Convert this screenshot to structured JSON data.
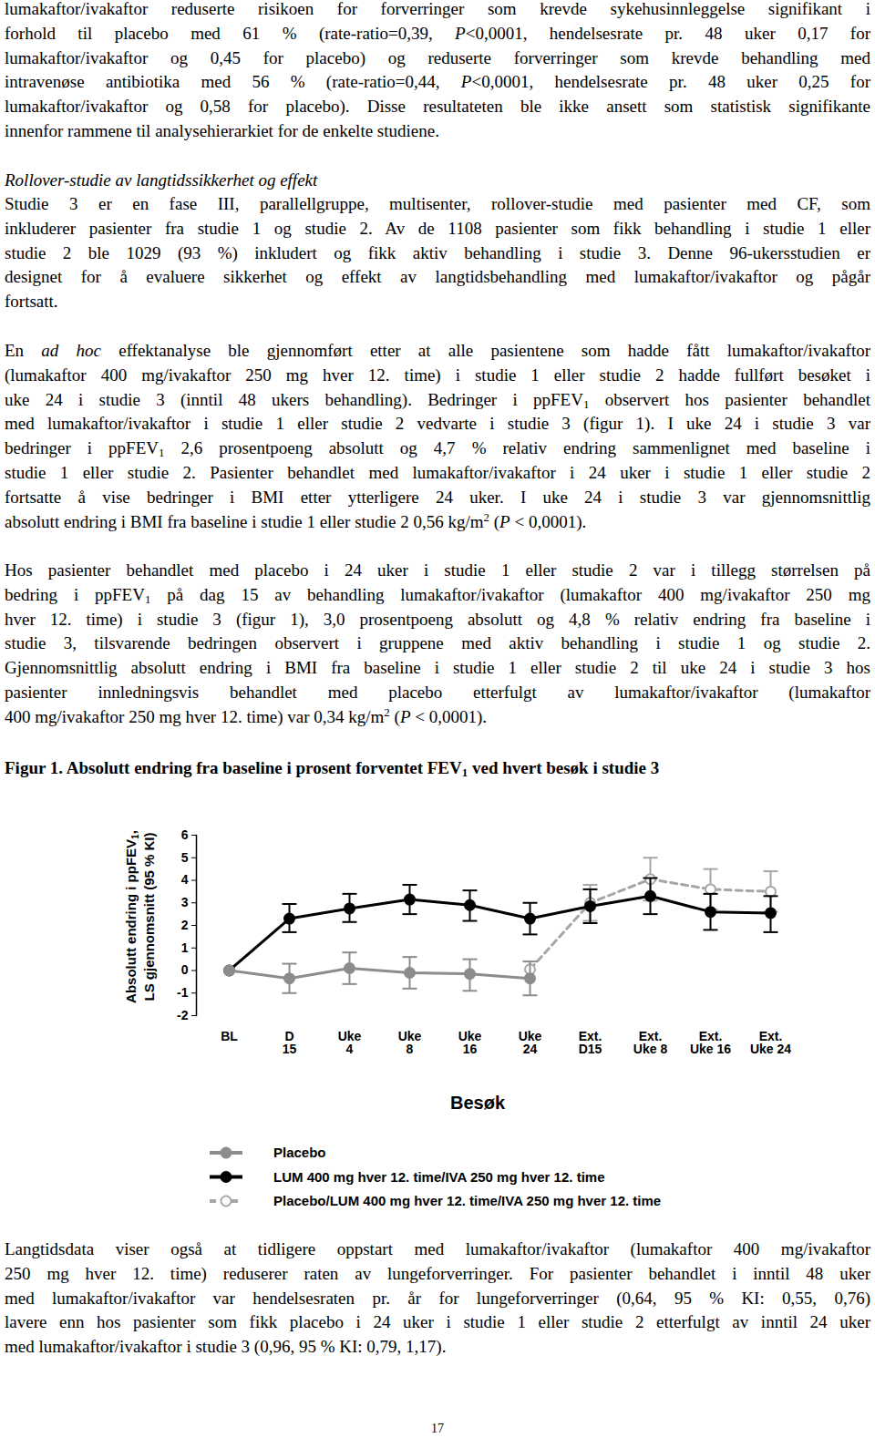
{
  "document": {
    "paragraph_1": [
      [
        "lumakaftor/ivakaftor reduserte risikoen for forverringer som krevde sykehusinnleggelse signifikant i"
      ],
      [
        "forhold til placebo med 61 % (rate-ratio=0,39, ",
        {
          "i": "P"
        },
        "<0,0001, hendelsesrate pr. 48 uker 0,17 for"
      ],
      [
        "lumakaftor/ivakaftor og 0,45 for placebo) og reduserte forverringer som krevde behandling med"
      ],
      [
        "intravenøse antibiotika med 56 % (rate-ratio=0,44, ",
        {
          "i": "P"
        },
        "<0,0001, hendelsesrate pr. 48 uker 0,25 for"
      ],
      [
        "lumakaftor/ivakaftor og 0,58 for placebo). Disse resultateten ble ikke ansett som statistisk signifikante"
      ],
      [
        "innenfor rammene til analysehierarkiet for de enkelte studiene."
      ]
    ],
    "heading": "Rollover-studie av langtidssikkerhet og effekt",
    "paragraph_2": [
      [
        "Studie 3 er en fase III, parallellgruppe, multisenter, rollover-studie med pasienter med CF, som"
      ],
      [
        "inkluderer pasienter fra studie 1 og studie 2. Av de 1108 pasienter som fikk behandling i studie 1 eller"
      ],
      [
        "studie 2 ble 1029 (93 %) inkludert og fikk aktiv behandling i studie 3. Denne 96-ukersstudien er"
      ],
      [
        "designet for å evaluere sikkerhet og effekt av langtidsbehandling med lumakaftor/ivakaftor og pågår"
      ],
      [
        "fortsatt."
      ]
    ],
    "paragraph_3": [
      [
        "En ",
        {
          "i": "ad hoc"
        },
        " effektanalyse ble gjennomført etter at alle pasientene som hadde fått lumakaftor/ivakaftor"
      ],
      [
        "(lumakaftor 400 mg/ivakaftor 250 mg hver 12. time) i studie 1 eller studie 2 hadde fullført besøket i"
      ],
      [
        "uke 24 i studie 3 (inntil 48 ukers behandling). Bedringer i ppFEV",
        {
          "sub": "1"
        },
        " observert hos pasienter behandlet"
      ],
      [
        "med lumakaftor/ivakaftor i studie 1 eller studie 2 vedvarte i studie 3 (figur 1). I uke 24 i studie 3 var"
      ],
      [
        "bedringer i ppFEV",
        {
          "sub": "1"
        },
        " 2,6 prosentpoeng absolutt og 4,7 % relativ endring sammenlignet med baseline i"
      ],
      [
        "studie 1 eller studie 2. Pasienter behandlet med lumakaftor/ivakaftor i 24 uker i studie 1 eller studie 2"
      ],
      [
        "fortsatte å vise bedringer i BMI etter ytterligere 24 uker. I uke 24 i studie 3 var gjennomsnittlig"
      ],
      [
        "absolutt endring i BMI fra baseline i studie 1 eller studie 2 0,56 kg/m",
        {
          "sup": "2"
        },
        " (",
        {
          "i": "P"
        },
        " < 0,0001)."
      ]
    ],
    "paragraph_4": [
      [
        "Hos pasienter behandlet med placebo i 24 uker i studie 1 eller studie 2 var i tillegg størrelsen på"
      ],
      [
        "bedring i ppFEV",
        {
          "sub": "1"
        },
        " på dag 15 av behandling lumakaftor/ivakaftor (lumakaftor 400 mg/ivakaftor 250 mg"
      ],
      [
        "hver 12. time) i studie 3 (figur 1), 3,0 prosentpoeng absolutt og 4,8 % relativ endring fra baseline i"
      ],
      [
        "studie 3, tilsvarende bedringen observert i gruppene med aktiv behandling i studie 1 og studie 2."
      ],
      [
        "Gjennomsnittlig absolutt endring i BMI fra baseline i studie 1 eller studie 2 til uke 24 i studie 3 hos"
      ],
      [
        "pasienter innledningsvis behandlet med placebo etterfulgt av lumakaftor/ivakaftor (lumakaftor"
      ],
      [
        "400 mg/ivakaftor 250 mg hver 12. time) var 0,34 kg/m",
        {
          "sup": "2"
        },
        " (",
        {
          "i": "P"
        },
        " < 0,0001)."
      ]
    ],
    "paragraph_5": [
      [
        "Langtidsdata viser også at tidligere oppstart med lumakaftor/ivakaftor (lumakaftor 400 mg/ivakaftor"
      ],
      [
        "250 mg hver 12. time) reduserer raten av lungeforverringer. For pasienter behandlet i inntil 48 uker"
      ],
      [
        "med lumakaftor/ivakaftor var hendelsesraten pr. år for lungeforverringer (0,64, 95 % KI: 0,55, 0,76)"
      ],
      [
        "lavere enn hos pasienter som fikk placebo i 24 uker i studie 1 eller studie 2 etterfulgt av inntil 24 uker"
      ],
      [
        "med lumakaftor/ivakaftor i studie 3 (0,96, 95 % KI: 0,79, 1,17)."
      ]
    ],
    "page_number": "17"
  },
  "chart_data": {
    "type": "line",
    "title": [
      "Figur 1. Absolutt endring fra baseline i prosent forventet FEV",
      {
        "sub": "1"
      },
      " ved hvert besøk i studie 3"
    ],
    "x_label": "Besøk",
    "y_label": [
      [
        "Absolutt endring i ppFEV",
        {
          "sub": "1"
        },
        ","
      ],
      [
        "LS gjennomsnitt (95 % KI)"
      ]
    ],
    "categories": [
      "BL",
      "D\n15",
      "Uke\n4",
      "Uke\n8",
      "Uke\n16",
      "Uke\n24",
      "Ext.\nD15",
      "Ext.\nUke 8",
      "Ext.\nUke 16",
      "Ext.\nUke 24"
    ],
    "ylim": [
      -2,
      6
    ],
    "yticks": [
      -2,
      -1,
      0,
      1,
      2,
      3,
      4,
      5,
      6
    ],
    "legend": "bottom",
    "series": [
      {
        "name": "Placebo",
        "color": "#8c8c8c",
        "marker": "circle",
        "line_style": "solid",
        "values": [
          0,
          -0.35,
          0.1,
          -0.1,
          -0.15,
          -0.35,
          null,
          null,
          null,
          null
        ],
        "lower": [
          null,
          -1.0,
          -0.6,
          -0.8,
          -0.9,
          -1.1,
          null,
          null,
          null,
          null
        ],
        "upper": [
          null,
          0.3,
          0.8,
          0.6,
          0.5,
          0.4,
          null,
          null,
          null,
          null
        ]
      },
      {
        "name": "LUM 400 mg hver 12. time/IVA 250 mg hver 12. time",
        "color": "#000000",
        "marker": "circle",
        "line_style": "solid",
        "values": [
          0,
          2.3,
          2.75,
          3.15,
          2.9,
          2.3,
          2.85,
          3.3,
          2.6,
          2.55
        ],
        "lower": [
          null,
          1.7,
          2.15,
          2.5,
          2.2,
          1.6,
          2.1,
          2.5,
          1.8,
          1.7
        ],
        "upper": [
          null,
          2.95,
          3.4,
          3.8,
          3.55,
          3.0,
          3.6,
          4.1,
          3.4,
          3.3
        ]
      },
      {
        "name": "Placebo/LUM 400 mg hver 12. time/IVA 250 mg hver 12. time",
        "color": "#a6a6a6",
        "marker": "open circle",
        "line_style": "dashed",
        "values": [
          null,
          null,
          null,
          null,
          null,
          0.05,
          3.0,
          4.05,
          3.6,
          3.5
        ],
        "lower": [
          null,
          null,
          null,
          null,
          null,
          null,
          2.2,
          3.1,
          2.7,
          2.6
        ],
        "upper": [
          null,
          null,
          null,
          null,
          null,
          null,
          3.8,
          5.0,
          4.5,
          4.4
        ]
      }
    ]
  }
}
